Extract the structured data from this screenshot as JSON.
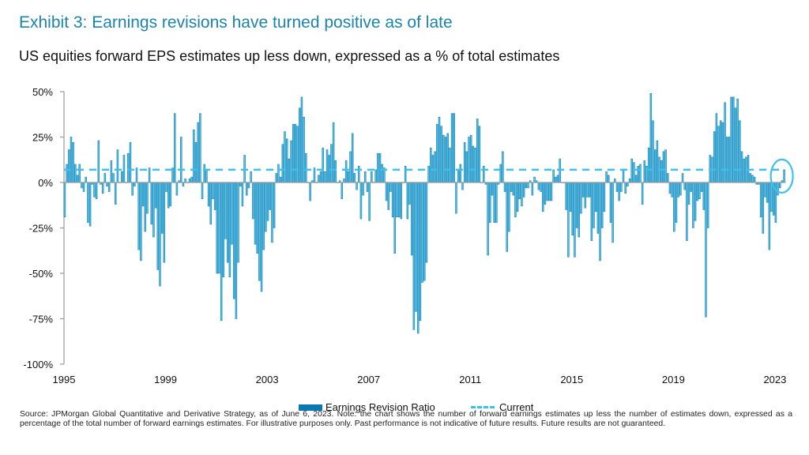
{
  "title": "Exhibit 3: Earnings revisions have turned positive as of late",
  "subtitle": "US equities forward EPS estimates up less down, expressed as a % of total estimates",
  "source": "Source: JPMorgan Global Quantitative and Derivative Strategy, as of June 6, 2023. Note: the chart shows the number of forward earnings estimates up less the number of estimates down, expressed as a percentage of the total number of forward earnings estimates. For illustrative purposes only. Past performance is not indicative of future results. Future results are not guaranteed.",
  "colors": {
    "title": "#1b84ad",
    "bar_fill": "#4cc3ec",
    "bar_edge": "#1f7fae",
    "legend_bar": "#0b78b0",
    "current_line": "#3ec0ef",
    "axis": "#999999"
  },
  "chart_data": {
    "type": "bar",
    "frequency": "monthly",
    "ylim": [
      -100,
      50
    ],
    "y_ticks": [
      50,
      25,
      0,
      -25,
      -50,
      -75,
      -100
    ],
    "y_tick_labels": [
      "50%",
      "25%",
      "0%",
      "-25%",
      "-50%",
      "-75%",
      "-100%"
    ],
    "x_tick_labels": [
      "1995",
      "1999",
      "2003",
      "2007",
      "2011",
      "2015",
      "2019",
      "2023"
    ],
    "grid": false,
    "legend_placement": "bottom",
    "legend": [
      "Earnings Revision Ratio",
      "Current"
    ],
    "current_value": 7,
    "highlight": "circle around latest value",
    "series": [
      {
        "name": "Earnings Revision Ratio",
        "values_by_year": {
          "1995": [
            -19,
            10,
            18,
            25,
            22,
            10,
            4,
            10,
            -3,
            -5,
            3,
            -22
          ],
          "1996": [
            -24,
            -1,
            -8,
            -9,
            23,
            -1,
            -6,
            5,
            -2,
            -5,
            12,
            5
          ],
          "1997": [
            -12,
            18,
            0,
            6,
            15,
            0,
            16,
            22,
            -7,
            -2,
            8,
            -37
          ],
          "1998": [
            -43,
            -13,
            -27,
            -17,
            8,
            -23,
            -30,
            -14,
            -48,
            -57,
            -28,
            -44
          ],
          "1999": [
            -5,
            -14,
            -13,
            8,
            38,
            -7,
            1,
            25,
            -2,
            2,
            0,
            2
          ],
          "2000": [
            3,
            29,
            22,
            33,
            38,
            -9,
            10,
            7,
            -13,
            -23,
            -9,
            -15
          ],
          "2001": [
            -50,
            -50,
            -76,
            -52,
            -31,
            -44,
            -52,
            -34,
            -64,
            -75,
            -44,
            -2
          ],
          "2002": [
            -13,
            15,
            -7,
            -3,
            6,
            -20,
            -34,
            -39,
            -54,
            -60,
            -37,
            -27
          ],
          "2003": [
            -21,
            -15,
            -33,
            -25,
            5,
            10,
            3,
            21,
            28,
            24,
            13,
            23
          ],
          "2004": [
            32,
            32,
            31,
            41,
            47,
            36,
            16,
            0,
            -10,
            1,
            8,
            0
          ],
          "2005": [
            4,
            6,
            19,
            6,
            18,
            15,
            21,
            33,
            12,
            0,
            1,
            -9
          ],
          "2006": [
            2,
            12,
            6,
            17,
            27,
            5,
            -4,
            9,
            -20,
            -7,
            6,
            -5
          ],
          "2007": [
            -21,
            6,
            0,
            7,
            16,
            16,
            10,
            8,
            -10,
            -15,
            -5,
            -19
          ],
          "2008": [
            -39,
            -19,
            -19,
            -20,
            0,
            9,
            -20,
            -12,
            -40,
            -81,
            -71,
            -83
          ],
          "2009": [
            -76,
            -55,
            -54,
            -44,
            9,
            19,
            15,
            17,
            32,
            36,
            31,
            26
          ],
          "2010": [
            25,
            27,
            19,
            38,
            38,
            -17,
            7,
            10,
            -4,
            22,
            17,
            25
          ],
          "2011": [
            26,
            20,
            19,
            35,
            31,
            0,
            9,
            -1,
            -40,
            -22,
            -7,
            -22
          ],
          "2012": [
            -22,
            -1,
            10,
            17,
            -5,
            -38,
            -27,
            -5,
            -7,
            -19,
            -16,
            -9
          ],
          "2013": [
            -13,
            -8,
            -3,
            -3,
            1,
            -7,
            3,
            1,
            -4,
            -5,
            -16,
            -12
          ],
          "2014": [
            -10,
            -10,
            -10,
            7,
            3,
            4,
            13,
            0,
            0,
            -15,
            -41,
            -16
          ],
          "2015": [
            -29,
            -41,
            -25,
            -30,
            -17,
            -8,
            -14,
            -8,
            -8,
            -32,
            -25,
            -16
          ],
          "2016": [
            -28,
            -43,
            -25,
            -16,
            6,
            4,
            -22,
            -33,
            2,
            -5,
            -10,
            -5
          ],
          "2017": [
            7,
            -6,
            -2,
            2,
            13,
            11,
            4,
            9,
            10,
            -12,
            12,
            9
          ],
          "2018": [
            19,
            49,
            34,
            18,
            23,
            14,
            12,
            17,
            18,
            5,
            -6,
            -8
          ],
          "2019": [
            -27,
            -22,
            -8,
            -7,
            5,
            -4,
            -32,
            -12,
            -5,
            -25,
            -21,
            -10
          ],
          "2020": [
            -9,
            -5,
            -15,
            -74,
            -25,
            15,
            14,
            28,
            38,
            31,
            34,
            33
          ],
          "2021": [
            44,
            25,
            25,
            47,
            47,
            41,
            46,
            34,
            17,
            13,
            14,
            15
          ],
          "2022": [
            5,
            4,
            3,
            -1,
            -1,
            -19,
            -28,
            -8,
            -11,
            -37,
            -16,
            -18
          ],
          "2023": [
            -22,
            -7,
            -3,
            1,
            7
          ]
        }
      }
    ]
  }
}
